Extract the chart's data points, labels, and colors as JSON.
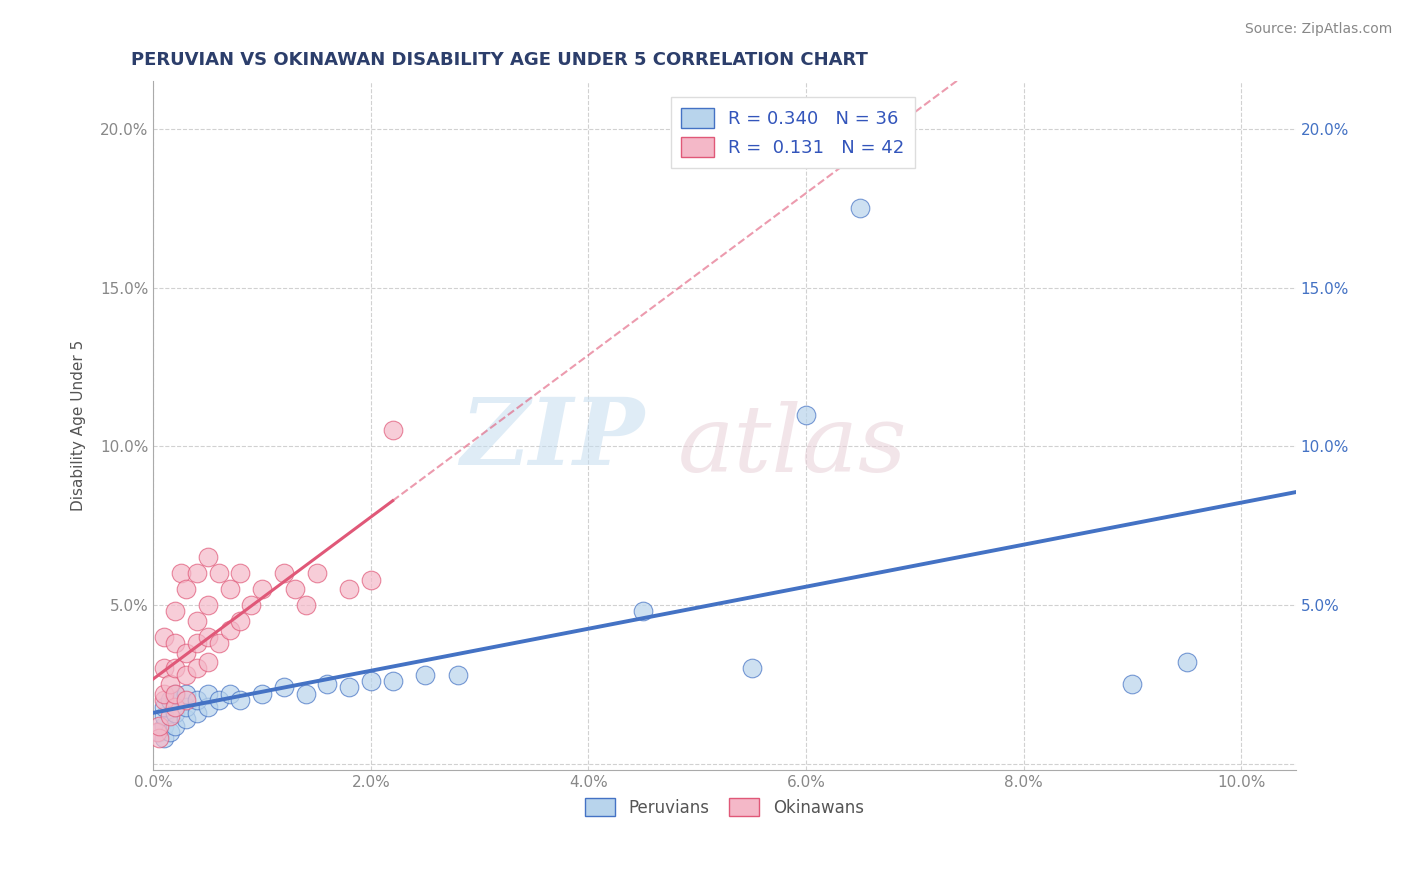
{
  "title": "PERUVIAN VS OKINAWAN DISABILITY AGE UNDER 5 CORRELATION CHART",
  "source": "Source: ZipAtlas.com",
  "ylabel": "Disability Age Under 5",
  "xlim": [
    0.0,
    0.105
  ],
  "ylim": [
    -0.002,
    0.215
  ],
  "blue_color": "#b8d4ec",
  "blue_line_color": "#4472c4",
  "pink_color": "#f4b8c8",
  "pink_line_color": "#e05878",
  "legend_blue_label": "R = 0.340   N = 36",
  "legend_pink_label": "R =  0.131   N = 42",
  "background_color": "#ffffff",
  "grid_color": "#cccccc",
  "right_axis_color": "#4472c4",
  "peruvians_x": [
    0.0005,
    0.001,
    0.001,
    0.001,
    0.001,
    0.0015,
    0.0015,
    0.002,
    0.002,
    0.002,
    0.002,
    0.003,
    0.003,
    0.003,
    0.004,
    0.004,
    0.005,
    0.005,
    0.006,
    0.007,
    0.008,
    0.01,
    0.012,
    0.014,
    0.016,
    0.018,
    0.02,
    0.022,
    0.025,
    0.028,
    0.045,
    0.055,
    0.06,
    0.065,
    0.09,
    0.095
  ],
  "peruvians_y": [
    0.01,
    0.008,
    0.012,
    0.015,
    0.018,
    0.01,
    0.02,
    0.012,
    0.016,
    0.02,
    0.022,
    0.014,
    0.018,
    0.022,
    0.016,
    0.02,
    0.018,
    0.022,
    0.02,
    0.022,
    0.02,
    0.022,
    0.024,
    0.022,
    0.025,
    0.024,
    0.026,
    0.026,
    0.028,
    0.028,
    0.048,
    0.03,
    0.11,
    0.175,
    0.025,
    0.032
  ],
  "okinawans_x": [
    0.0003,
    0.0005,
    0.0005,
    0.001,
    0.001,
    0.001,
    0.001,
    0.0015,
    0.0015,
    0.002,
    0.002,
    0.002,
    0.002,
    0.002,
    0.0025,
    0.003,
    0.003,
    0.003,
    0.003,
    0.004,
    0.004,
    0.004,
    0.004,
    0.005,
    0.005,
    0.005,
    0.005,
    0.006,
    0.006,
    0.007,
    0.007,
    0.008,
    0.008,
    0.009,
    0.01,
    0.012,
    0.013,
    0.014,
    0.015,
    0.018,
    0.02,
    0.022
  ],
  "okinawans_y": [
    0.01,
    0.008,
    0.012,
    0.02,
    0.022,
    0.03,
    0.04,
    0.015,
    0.025,
    0.018,
    0.022,
    0.03,
    0.038,
    0.048,
    0.06,
    0.02,
    0.028,
    0.035,
    0.055,
    0.03,
    0.038,
    0.045,
    0.06,
    0.032,
    0.04,
    0.05,
    0.065,
    0.038,
    0.06,
    0.042,
    0.055,
    0.045,
    0.06,
    0.05,
    0.055,
    0.06,
    0.055,
    0.05,
    0.06,
    0.055,
    0.058,
    0.105
  ]
}
